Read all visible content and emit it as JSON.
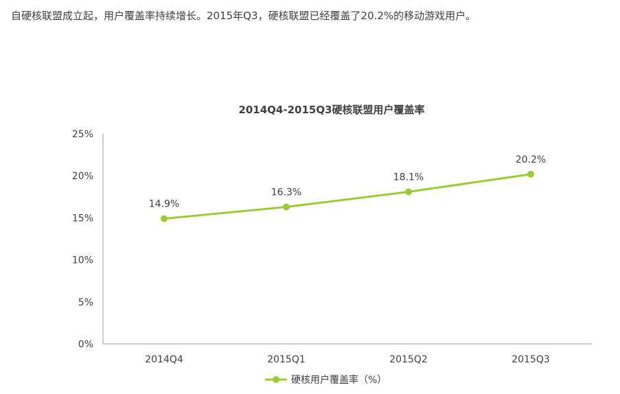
{
  "intro_text": "自硬核联盟成立起，用户覆盖率持续增长。2015年Q3，硬核联盟已经覆盖了20.2%的移动游戏用户。",
  "colors": {
    "series": "#9acd32",
    "axis": "#999999",
    "text": "#404040"
  },
  "chart_data": {
    "type": "line",
    "title": "2014Q4-2015Q3硬核联盟用户覆盖率",
    "xlabel": "",
    "ylabel": "",
    "categories": [
      "2014Q4",
      "2015Q1",
      "2015Q2",
      "2015Q3"
    ],
    "series": [
      {
        "name": "硬核用户覆盖率（%）",
        "values": [
          14.9,
          16.3,
          18.1,
          20.2
        ],
        "labels": [
          "14.9%",
          "16.3%",
          "18.1%",
          "20.2%"
        ]
      }
    ],
    "ylim": [
      0,
      25
    ],
    "yticks": [
      "0%",
      "5%",
      "10%",
      "15%",
      "20%",
      "25%"
    ],
    "ytick_values": [
      0,
      5,
      10,
      15,
      20,
      25
    ],
    "grid": false,
    "legend": "bottom-center"
  }
}
